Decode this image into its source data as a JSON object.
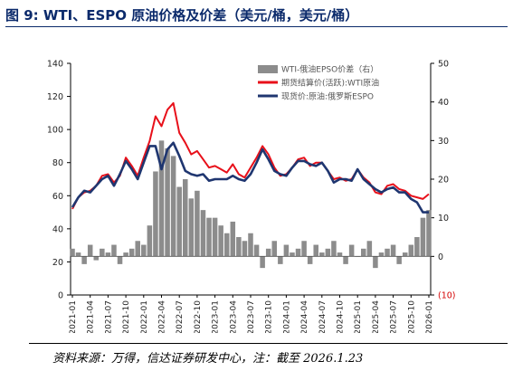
{
  "header": {
    "title": "图 9:  WTI、ESPO 原油价格及价差（美元/桶，美元/桶）"
  },
  "footer": {
    "source": "资料来源：万得，信达证券研发中心，注：截至 2026.1.23"
  },
  "chart_data": {
    "type": "line",
    "left_axis": {
      "range": [
        0,
        140
      ],
      "ticks": [
        "0",
        "20",
        "40",
        "60",
        "80",
        "100",
        "120",
        "140"
      ]
    },
    "right_axis": {
      "range": [
        -10,
        50
      ],
      "ticks": [
        "(10)",
        "0",
        "10",
        "20",
        "30",
        "40",
        "50"
      ]
    },
    "x_tick_labels": [
      "2021-01",
      "2021-04",
      "2021-07",
      "2021-10",
      "2022-01",
      "2022-04",
      "2022-07",
      "2022-10",
      "2023-01",
      "2023-04",
      "2023-07",
      "2023-10",
      "2024-01",
      "2024-04",
      "2024-07",
      "2024-10",
      "2025-01",
      "2025-04",
      "2025-07",
      "2025-10",
      "2026-01"
    ],
    "x": [
      "2021-01",
      "2021-02",
      "2021-03",
      "2021-04",
      "2021-05",
      "2021-06",
      "2021-07",
      "2021-08",
      "2021-09",
      "2021-10",
      "2021-11",
      "2021-12",
      "2022-01",
      "2022-02",
      "2022-03",
      "2022-04",
      "2022-05",
      "2022-06",
      "2022-07",
      "2022-08",
      "2022-09",
      "2022-10",
      "2022-11",
      "2022-12",
      "2023-01",
      "2023-02",
      "2023-03",
      "2023-04",
      "2023-05",
      "2023-06",
      "2023-07",
      "2023-08",
      "2023-09",
      "2023-10",
      "2023-11",
      "2023-12",
      "2024-01",
      "2024-02",
      "2024-03",
      "2024-04",
      "2024-05",
      "2024-06",
      "2024-07",
      "2024-08",
      "2024-09",
      "2024-10",
      "2024-11",
      "2024-12",
      "2025-01",
      "2025-02",
      "2025-03",
      "2025-04",
      "2025-05",
      "2025-06",
      "2025-07",
      "2025-08",
      "2025-09",
      "2025-10",
      "2025-11",
      "2025-12",
      "2026-01"
    ],
    "series": [
      {
        "name": "WTI-俄油EPSO价差（右）",
        "axis": "right",
        "kind": "bar",
        "color": "#8c8c8c",
        "values": [
          2,
          1,
          -2,
          3,
          -1,
          2,
          1,
          3,
          -2,
          1,
          2,
          4,
          3,
          8,
          22,
          30,
          28,
          26,
          18,
          20,
          15,
          17,
          12,
          10,
          10,
          8,
          6,
          9,
          5,
          4,
          6,
          3,
          -3,
          2,
          4,
          -2,
          3,
          1,
          2,
          4,
          -2,
          3,
          1,
          2,
          4,
          1,
          -2,
          3,
          0,
          2,
          4,
          -3,
          1,
          2,
          3,
          -2,
          1,
          3,
          5,
          10,
          12
        ]
      },
      {
        "name": "期货结算价(活跃):WTI原油",
        "axis": "left",
        "kind": "line",
        "color": "#e8101a",
        "values": [
          52,
          59,
          62,
          63,
          66,
          72,
          73,
          68,
          72,
          83,
          78,
          72,
          83,
          93,
          108,
          102,
          112,
          116,
          98,
          92,
          85,
          87,
          82,
          77,
          78,
          76,
          74,
          79,
          73,
          71,
          77,
          83,
          90,
          85,
          77,
          72,
          73,
          77,
          82,
          83,
          78,
          80,
          80,
          75,
          70,
          71,
          69,
          70,
          76,
          71,
          68,
          62,
          61,
          66,
          67,
          64,
          63,
          60,
          59,
          58,
          61
        ]
      },
      {
        "name": "现货价:原油:俄罗斯ESPO",
        "axis": "left",
        "kind": "line",
        "color": "#1f3670",
        "values": [
          53,
          59,
          63,
          62,
          66,
          70,
          72,
          66,
          73,
          81,
          76,
          70,
          80,
          90,
          90,
          76,
          88,
          92,
          84,
          75,
          73,
          72,
          73,
          69,
          70,
          70,
          70,
          72,
          70,
          69,
          73,
          80,
          88,
          82,
          75,
          73,
          72,
          77,
          81,
          81,
          79,
          78,
          80,
          75,
          68,
          70,
          70,
          69,
          76,
          70,
          67,
          64,
          62,
          64,
          65,
          62,
          62,
          58,
          56,
          50,
          50
        ]
      }
    ]
  }
}
